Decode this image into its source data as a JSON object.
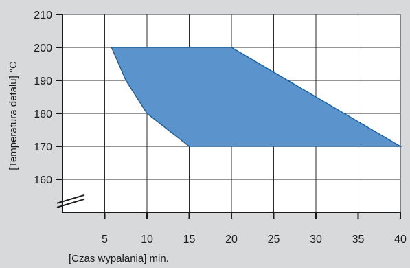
{
  "chart_data": {
    "type": "area",
    "title": "",
    "xlabel": "[Czas wypalania] min.",
    "ylabel": "[Temperatura detalu] °C",
    "x_ticks": [
      "5",
      "10",
      "15",
      "20",
      "25",
      "30",
      "35",
      "40"
    ],
    "y_ticks": [
      "160",
      "170",
      "180",
      "190",
      "200",
      "210"
    ],
    "xlim": [
      0,
      40
    ],
    "ylim": [
      150,
      210
    ],
    "grid": true,
    "y_axis_break": true,
    "region": {
      "x": [
        5.8,
        7.5,
        10,
        15,
        40,
        20,
        5.8
      ],
      "y": [
        200,
        190,
        180,
        170,
        170,
        200,
        200
      ]
    },
    "colors": {
      "region_fill": "#5b93cc",
      "region_stroke": "#1f5f9a",
      "background": "#d7d9db",
      "plot_background": "#ffffff",
      "axis": "#1c1c1c"
    }
  }
}
